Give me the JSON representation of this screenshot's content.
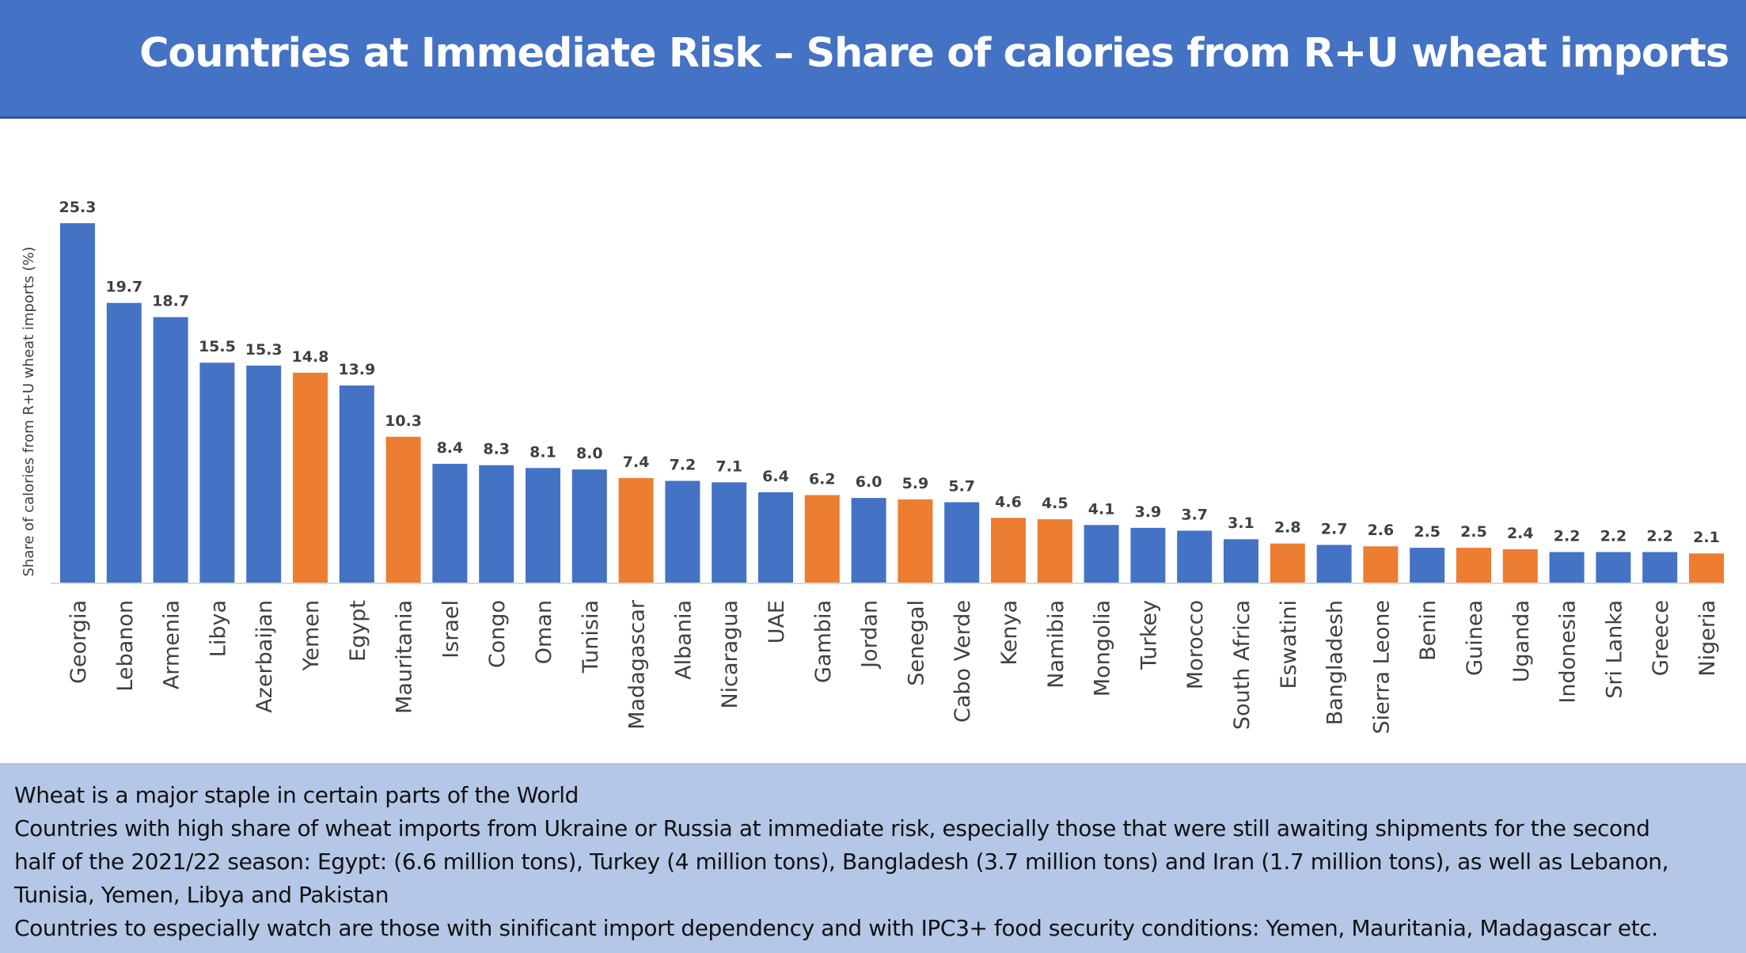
{
  "header": {
    "title": "Countries at Immediate Risk – Share of calories from R+U wheat imports"
  },
  "colors": {
    "header_bg": "#4472C4",
    "bar_blue": "#4472C4",
    "bar_orange": "#ED7D31",
    "notes_bg": "#B4C7E7"
  },
  "chart_data": {
    "type": "bar",
    "title": "",
    "xlabel": "",
    "ylabel": "Share of calories from R+U wheat imports (%)",
    "ylim": [
      0,
      25.3
    ],
    "grid": false,
    "categories": [
      "Georgia",
      "Lebanon",
      "Armenia",
      "Libya",
      "Azerbaijan",
      "Yemen",
      "Egypt",
      "Mauritania",
      "Israel",
      "Congo",
      "Oman",
      "Tunisia",
      "Madagascar",
      "Albania",
      "Nicaragua",
      "UAE",
      "Gambia",
      "Jordan",
      "Senegal",
      "Cabo Verde",
      "Kenya",
      "Namibia",
      "Mongolia",
      "Turkey",
      "Morocco",
      "South Africa",
      "Eswatini",
      "Bangladesh",
      "Sierra Leone",
      "Benin",
      "Guinea",
      "Uganda",
      "Indonesia",
      "Sri Lanka",
      "Greece",
      "Nigeria"
    ],
    "values": [
      25.3,
      19.7,
      18.7,
      15.5,
      15.3,
      14.8,
      13.9,
      10.3,
      8.4,
      8.3,
      8.1,
      8.0,
      7.4,
      7.2,
      7.1,
      6.4,
      6.2,
      6.0,
      5.9,
      5.7,
      4.6,
      4.5,
      4.1,
      3.9,
      3.7,
      3.1,
      2.8,
      2.7,
      2.6,
      2.5,
      2.5,
      2.4,
      2.2,
      2.2,
      2.2,
      2.1
    ],
    "value_labels": [
      "25.3",
      "19.7",
      "18.7",
      "15.5",
      "15.3",
      "14.8",
      "13.9",
      "10.3",
      "8.4",
      "8.3",
      "8.1",
      "8.0",
      "7.4",
      "7.2",
      "7.1",
      "6.4",
      "6.2",
      "6.0",
      "5.9",
      "5.7",
      "4.6",
      "4.5",
      "4.1",
      "3.9",
      "3.7",
      "3.1",
      "2.8",
      "2.7",
      "2.6",
      "2.5",
      "2.5",
      "2.4",
      "2.2",
      "2.2",
      "2.2",
      "2.1"
    ],
    "bar_colors": [
      "blue",
      "blue",
      "blue",
      "blue",
      "blue",
      "orange",
      "blue",
      "orange",
      "blue",
      "blue",
      "blue",
      "blue",
      "orange",
      "blue",
      "blue",
      "blue",
      "orange",
      "blue",
      "orange",
      "blue",
      "orange",
      "orange",
      "blue",
      "blue",
      "blue",
      "blue",
      "orange",
      "blue",
      "orange",
      "blue",
      "orange",
      "orange",
      "blue",
      "blue",
      "blue",
      "orange"
    ]
  },
  "notes": {
    "lines": [
      "Wheat is a major staple in certain parts of the World",
      "Countries with high share of wheat imports from Ukraine or Russia at immediate risk, especially those that were still awaiting shipments for the second",
      "half of the 2021/22 season: Egypt: (6.6 million tons), Turkey (4 million tons), Bangladesh (3.7 million tons) and Iran (1.7 million tons), as well as Lebanon,",
      "Tunisia, Yemen, Libya and Pakistan",
      "Countries to especially watch are those with sinificant import dependency and with IPC3+ food security conditions: Yemen, Mauritania, Madagascar etc."
    ]
  }
}
